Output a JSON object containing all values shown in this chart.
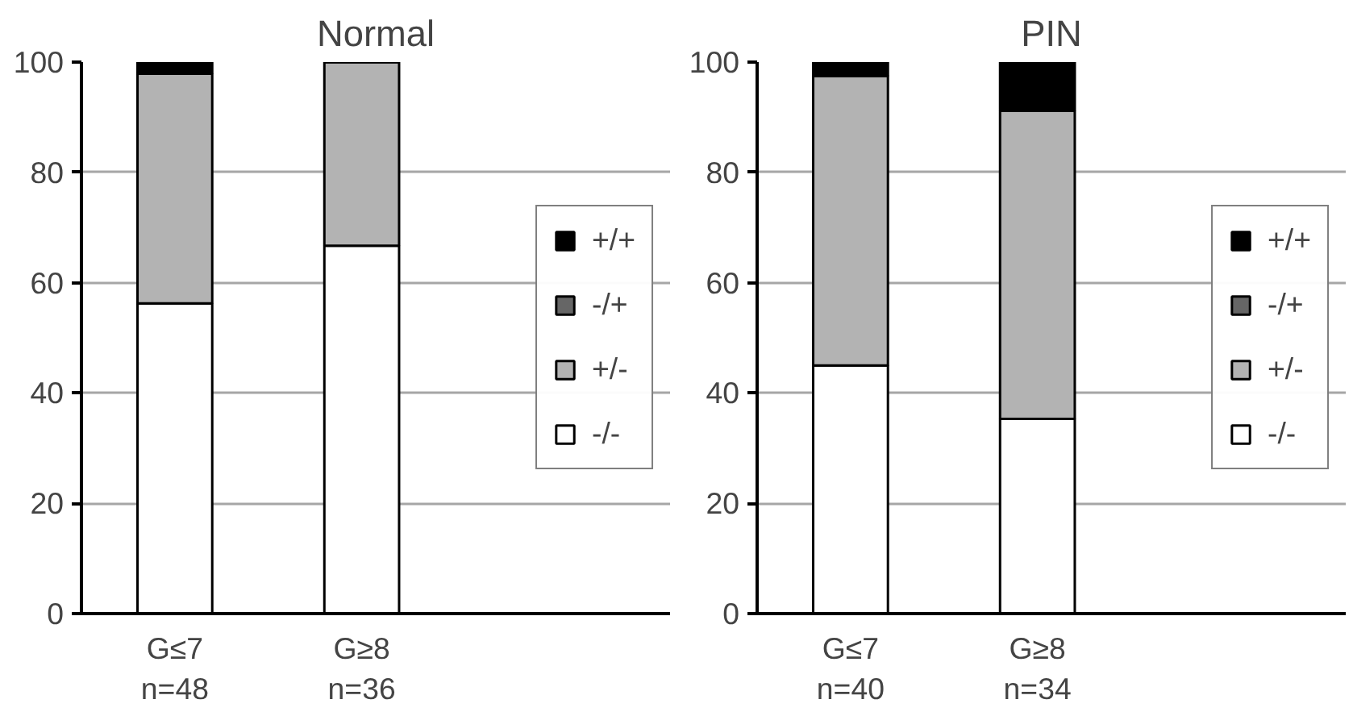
{
  "chart_data": [
    {
      "type": "bar",
      "title": "Normal",
      "categories": [
        "G≤7\nn=48",
        "G≥8\nn=36"
      ],
      "stacked": true,
      "ylim": [
        0,
        100
      ],
      "yticks": [
        0,
        20,
        40,
        60,
        80,
        100
      ],
      "grid": "y",
      "legend": "right",
      "series": [
        {
          "name": "-/-",
          "color": "#ffffff",
          "values": [
            56.25,
            66.7
          ]
        },
        {
          "name": "+/-",
          "color": "#b3b3b3",
          "values": [
            41.65,
            33.3
          ]
        },
        {
          "name": "-/+",
          "color": "#666666",
          "values": [
            0,
            0
          ]
        },
        {
          "name": "+/+",
          "color": "#000000",
          "values": [
            2.1,
            0
          ]
        }
      ]
    },
    {
      "type": "bar",
      "title": "PIN",
      "categories": [
        "G≤7\nn=40",
        "G≥8\nn=34"
      ],
      "stacked": true,
      "ylim": [
        0,
        100
      ],
      "yticks": [
        0,
        20,
        40,
        60,
        80,
        100
      ],
      "grid": "y",
      "legend": "right",
      "series": [
        {
          "name": "-/-",
          "color": "#ffffff",
          "values": [
            45,
            35.3
          ]
        },
        {
          "name": "+/-",
          "color": "#b3b3b3",
          "values": [
            52.5,
            55.9
          ]
        },
        {
          "name": "-/+",
          "color": "#666666",
          "values": [
            0,
            0
          ]
        },
        {
          "name": "+/+",
          "color": "#000000",
          "values": [
            2.5,
            8.8
          ]
        }
      ]
    }
  ]
}
